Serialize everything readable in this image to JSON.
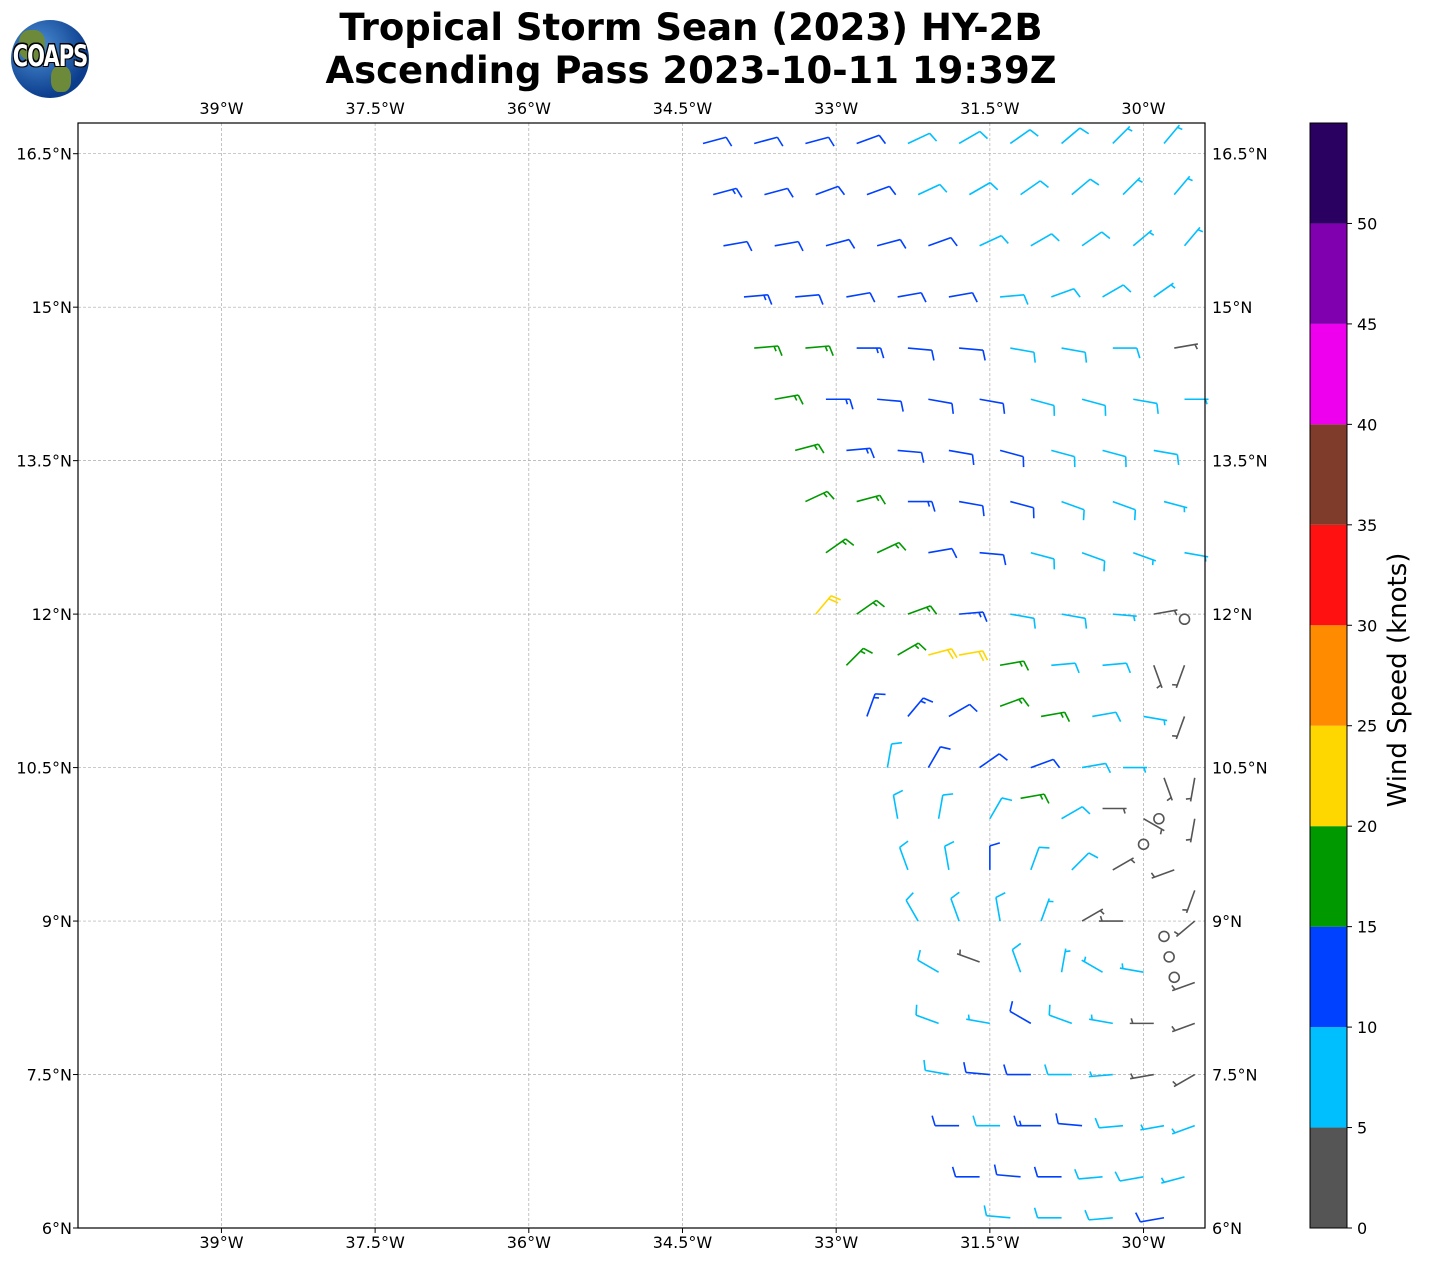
{
  "title": {
    "line1": "Tropical Storm Sean (2023) HY-2B",
    "line2": "Ascending Pass 2023-10-11 19:39Z"
  },
  "logo": {
    "text": "COAPS"
  },
  "chart_data": {
    "type": "wind-barb-map",
    "lon_range": [
      -40.4,
      -29.4
    ],
    "lat_range": [
      6.0,
      16.8
    ],
    "lon_ticks": [
      -39,
      -37.5,
      -36,
      -34.5,
      -33,
      -31.5,
      -30
    ],
    "lon_tick_labels": [
      "39°W",
      "37.5°W",
      "36°W",
      "34.5°W",
      "33°W",
      "31.5°W",
      "30°W"
    ],
    "lat_ticks": [
      16.5,
      15,
      13.5,
      12,
      10.5,
      9,
      7.5,
      6
    ],
    "lat_tick_labels": [
      "16.5°N",
      "15°N",
      "13.5°N",
      "12°N",
      "10.5°N",
      "9°N",
      "7.5°N",
      "6°N"
    ],
    "grid": true,
    "colorbar": {
      "label": "Wind Speed (knots)",
      "bounds": [
        0,
        5,
        10,
        15,
        20,
        25,
        30,
        35,
        40,
        45,
        50,
        55
      ],
      "colors": [
        "#555555",
        "#00bfff",
        "#0040ff",
        "#009900",
        "#ffd700",
        "#ff8c00",
        "#ff1111",
        "#7f3c2a",
        "#ee00ee",
        "#8000b0",
        "#2a0060"
      ],
      "tick_labels": [
        "0",
        "5",
        "10",
        "15",
        "20",
        "25",
        "30",
        "35",
        "40",
        "45",
        "50"
      ]
    },
    "barbs_note": "[lon, lat, speed_kt, direction_from_deg]",
    "barbs": [
      [
        -34.3,
        16.6,
        12,
        75
      ],
      [
        -33.8,
        16.6,
        12,
        75
      ],
      [
        -33.3,
        16.6,
        12,
        75
      ],
      [
        -32.8,
        16.6,
        11,
        70
      ],
      [
        -32.3,
        16.6,
        9,
        65
      ],
      [
        -31.8,
        16.6,
        8,
        60
      ],
      [
        -31.3,
        16.6,
        8,
        55
      ],
      [
        -30.8,
        16.6,
        8,
        50
      ],
      [
        -30.3,
        16.6,
        7,
        45
      ],
      [
        -29.8,
        16.6,
        7,
        40
      ],
      [
        -34.2,
        16.1,
        13,
        75
      ],
      [
        -33.7,
        16.1,
        12,
        75
      ],
      [
        -33.2,
        16.1,
        12,
        70
      ],
      [
        -32.7,
        16.1,
        12,
        70
      ],
      [
        -32.2,
        16.1,
        9,
        65
      ],
      [
        -31.7,
        16.1,
        8,
        60
      ],
      [
        -31.2,
        16.1,
        8,
        55
      ],
      [
        -30.7,
        16.1,
        8,
        50
      ],
      [
        -30.2,
        16.1,
        7,
        45
      ],
      [
        -29.7,
        16.1,
        7,
        40
      ],
      [
        -34.1,
        15.6,
        12,
        80
      ],
      [
        -33.6,
        15.6,
        12,
        80
      ],
      [
        -33.1,
        15.6,
        12,
        75
      ],
      [
        -32.6,
        15.6,
        12,
        75
      ],
      [
        -32.1,
        15.6,
        11,
        70
      ],
      [
        -31.6,
        15.6,
        9,
        65
      ],
      [
        -31.1,
        15.6,
        8,
        60
      ],
      [
        -30.6,
        15.6,
        8,
        55
      ],
      [
        -30.1,
        15.6,
        7,
        50
      ],
      [
        -29.6,
        15.6,
        7,
        40
      ],
      [
        -33.9,
        15.1,
        13,
        85
      ],
      [
        -33.4,
        15.1,
        12,
        85
      ],
      [
        -32.9,
        15.1,
        12,
        80
      ],
      [
        -32.4,
        15.1,
        12,
        80
      ],
      [
        -31.9,
        15.1,
        11,
        80
      ],
      [
        -31.4,
        15.1,
        9,
        85
      ],
      [
        -30.9,
        15.1,
        8,
        70
      ],
      [
        -30.4,
        15.1,
        8,
        60
      ],
      [
        -29.9,
        15.1,
        7,
        55
      ],
      [
        -33.8,
        14.6,
        17,
        85
      ],
      [
        -33.3,
        14.6,
        16,
        85
      ],
      [
        -32.8,
        14.6,
        13,
        90
      ],
      [
        -32.3,
        14.6,
        12,
        95
      ],
      [
        -31.8,
        14.6,
        12,
        95
      ],
      [
        -31.3,
        14.6,
        9,
        100
      ],
      [
        -30.8,
        14.6,
        8,
        100
      ],
      [
        -30.3,
        14.6,
        8,
        90
      ],
      [
        -29.7,
        14.6,
        4,
        80
      ],
      [
        -33.6,
        14.1,
        16,
        80
      ],
      [
        -33.1,
        14.1,
        13,
        90
      ],
      [
        -32.6,
        14.1,
        12,
        95
      ],
      [
        -32.1,
        14.1,
        12,
        100
      ],
      [
        -31.6,
        14.1,
        11,
        100
      ],
      [
        -31.1,
        14.1,
        9,
        105
      ],
      [
        -30.6,
        14.1,
        8,
        105
      ],
      [
        -30.1,
        14.1,
        8,
        100
      ],
      [
        -29.6,
        14.1,
        7,
        90
      ],
      [
        -33.4,
        13.6,
        17,
        75
      ],
      [
        -32.9,
        13.6,
        14,
        85
      ],
      [
        -32.4,
        13.6,
        12,
        95
      ],
      [
        -31.9,
        13.6,
        12,
        100
      ],
      [
        -31.4,
        13.6,
        11,
        105
      ],
      [
        -30.9,
        13.6,
        9,
        105
      ],
      [
        -30.4,
        13.6,
        8,
        105
      ],
      [
        -29.9,
        13.6,
        8,
        100
      ],
      [
        -33.3,
        13.1,
        17,
        65
      ],
      [
        -32.8,
        13.1,
        17,
        75
      ],
      [
        -32.3,
        13.1,
        13,
        90
      ],
      [
        -31.8,
        13.1,
        12,
        100
      ],
      [
        -31.3,
        13.1,
        12,
        105
      ],
      [
        -30.8,
        13.1,
        9,
        110
      ],
      [
        -30.3,
        13.1,
        8,
        110
      ],
      [
        -29.8,
        13.1,
        7,
        105
      ],
      [
        -33.1,
        12.6,
        17,
        55
      ],
      [
        -32.6,
        12.6,
        16,
        65
      ],
      [
        -32.1,
        12.6,
        12,
        80
      ],
      [
        -31.6,
        12.6,
        12,
        95
      ],
      [
        -31.1,
        12.6,
        9,
        105
      ],
      [
        -30.6,
        12.6,
        8,
        110
      ],
      [
        -30.1,
        12.6,
        7,
        110
      ],
      [
        -29.6,
        12.6,
        6,
        100
      ],
      [
        -33.2,
        12.0,
        21,
        40
      ],
      [
        -32.8,
        12.0,
        17,
        55
      ],
      [
        -32.3,
        12.0,
        16,
        70
      ],
      [
        -31.8,
        12.0,
        13,
        85
      ],
      [
        -31.3,
        12.0,
        9,
        100
      ],
      [
        -30.8,
        12.0,
        8,
        100
      ],
      [
        -30.3,
        12.0,
        7,
        95
      ],
      [
        -29.9,
        12.0,
        3,
        80
      ],
      [
        -29.6,
        11.95,
        1,
        0
      ],
      [
        -32.9,
        11.5,
        17,
        45
      ],
      [
        -32.4,
        11.6,
        16,
        60
      ],
      [
        -32.1,
        11.6,
        21,
        75
      ],
      [
        -31.8,
        11.6,
        21,
        80
      ],
      [
        -31.4,
        11.5,
        16,
        80
      ],
      [
        -30.9,
        11.5,
        9,
        85
      ],
      [
        -30.4,
        11.5,
        8,
        85
      ],
      [
        -29.9,
        11.5,
        4,
        160
      ],
      [
        -29.6,
        11.5,
        3,
        200
      ],
      [
        -32.7,
        11.0,
        13,
        20
      ],
      [
        -32.3,
        11.0,
        13,
        40
      ],
      [
        -31.9,
        11.0,
        12,
        60
      ],
      [
        -31.4,
        11.1,
        17,
        70
      ],
      [
        -31.0,
        11.0,
        16,
        80
      ],
      [
        -30.5,
        11.0,
        8,
        80
      ],
      [
        -30.0,
        11.0,
        7,
        100
      ],
      [
        -29.6,
        11.0,
        3,
        200
      ],
      [
        -32.5,
        10.5,
        8,
        10
      ],
      [
        -32.1,
        10.5,
        12,
        30
      ],
      [
        -31.6,
        10.5,
        12,
        55
      ],
      [
        -31.1,
        10.5,
        12,
        70
      ],
      [
        -30.6,
        10.5,
        8,
        80
      ],
      [
        -30.2,
        10.5,
        6,
        90
      ],
      [
        -29.8,
        10.4,
        3,
        160
      ],
      [
        -29.5,
        10.4,
        3,
        190
      ],
      [
        -32.4,
        10.0,
        8,
        350
      ],
      [
        -32.0,
        10.0,
        8,
        10
      ],
      [
        -31.5,
        10.0,
        8,
        30
      ],
      [
        -31.2,
        10.2,
        16,
        80
      ],
      [
        -30.8,
        10.0,
        8,
        60
      ],
      [
        -30.4,
        10.1,
        4,
        90
      ],
      [
        -30.0,
        10.0,
        3,
        120
      ],
      [
        -29.85,
        10.0,
        0,
        0
      ],
      [
        -29.5,
        10.0,
        3,
        190
      ],
      [
        -32.3,
        9.5,
        8,
        340
      ],
      [
        -31.9,
        9.5,
        8,
        350
      ],
      [
        -31.5,
        9.5,
        12,
        0
      ],
      [
        -31.1,
        9.5,
        8,
        20
      ],
      [
        -30.7,
        9.5,
        8,
        45
      ],
      [
        -30.3,
        9.5,
        4,
        60
      ],
      [
        -30.0,
        9.75,
        0,
        0
      ],
      [
        -29.7,
        9.5,
        3,
        250
      ],
      [
        -29.5,
        9.3,
        3,
        200
      ],
      [
        -32.2,
        9.0,
        8,
        330
      ],
      [
        -31.8,
        9.0,
        8,
        340
      ],
      [
        -31.4,
        9.0,
        8,
        350
      ],
      [
        -31.0,
        9.0,
        7,
        20
      ],
      [
        -30.6,
        9.0,
        4,
        60
      ],
      [
        -30.2,
        9.0,
        4,
        270
      ],
      [
        -29.8,
        8.85,
        0,
        0
      ],
      [
        -29.5,
        9.0,
        3,
        230
      ],
      [
        -32.0,
        8.5,
        8,
        300
      ],
      [
        -31.6,
        8.6,
        4,
        290
      ],
      [
        -31.2,
        8.5,
        8,
        340
      ],
      [
        -30.8,
        8.5,
        7,
        10
      ],
      [
        -30.4,
        8.5,
        7,
        300
      ],
      [
        -30.0,
        8.5,
        7,
        280
      ],
      [
        -29.75,
        8.65,
        0,
        0
      ],
      [
        -29.7,
        8.45,
        0,
        0
      ],
      [
        -29.5,
        8.4,
        3,
        250
      ],
      [
        -32.0,
        8.0,
        8,
        290
      ],
      [
        -31.5,
        8.0,
        7,
        280
      ],
      [
        -31.1,
        8.0,
        12,
        300
      ],
      [
        -30.7,
        8.0,
        8,
        290
      ],
      [
        -30.3,
        8.0,
        7,
        280
      ],
      [
        -29.9,
        8.0,
        4,
        270
      ],
      [
        -29.5,
        8.0,
        3,
        250
      ],
      [
        -31.9,
        7.5,
        8,
        280
      ],
      [
        -31.5,
        7.5,
        12,
        275
      ],
      [
        -31.1,
        7.5,
        12,
        270
      ],
      [
        -30.7,
        7.5,
        8,
        270
      ],
      [
        -30.3,
        7.5,
        7,
        265
      ],
      [
        -29.9,
        7.5,
        4,
        260
      ],
      [
        -29.5,
        7.5,
        3,
        240
      ],
      [
        -31.8,
        7.0,
        12,
        270
      ],
      [
        -31.4,
        7.0,
        8,
        270
      ],
      [
        -31.0,
        7.0,
        13,
        270
      ],
      [
        -30.6,
        7.0,
        12,
        275
      ],
      [
        -30.2,
        7.0,
        8,
        265
      ],
      [
        -29.8,
        7.0,
        7,
        260
      ],
      [
        -29.5,
        7.0,
        7,
        250
      ],
      [
        -31.6,
        6.5,
        12,
        270
      ],
      [
        -31.2,
        6.5,
        12,
        275
      ],
      [
        -30.8,
        6.5,
        12,
        270
      ],
      [
        -30.4,
        6.5,
        8,
        265
      ],
      [
        -30.0,
        6.5,
        8,
        260
      ],
      [
        -29.6,
        6.5,
        7,
        255
      ],
      [
        -31.3,
        6.1,
        8,
        275
      ],
      [
        -30.8,
        6.1,
        8,
        270
      ],
      [
        -30.3,
        6.1,
        8,
        265
      ],
      [
        -29.8,
        6.1,
        12,
        260
      ]
    ]
  }
}
